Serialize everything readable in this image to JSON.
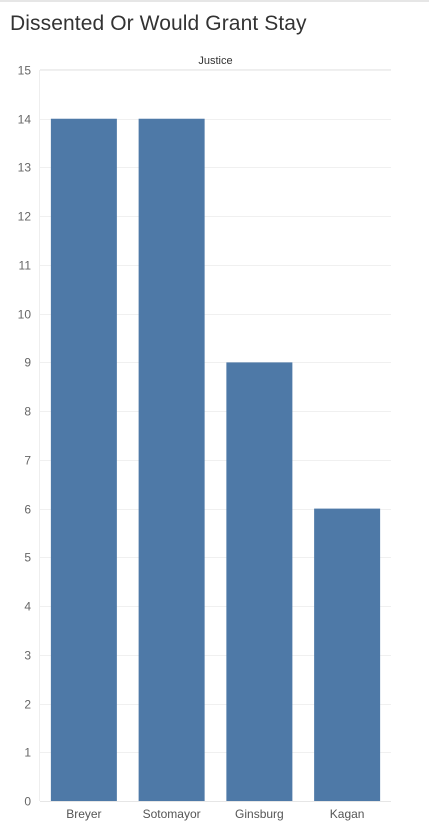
{
  "title": "Dissented Or Would Grant Stay",
  "chart_data": {
    "type": "bar",
    "column_header": "Justice",
    "categories": [
      "Breyer",
      "Sotomayor",
      "Ginsburg",
      "Kagan"
    ],
    "values": [
      14,
      14,
      9,
      6
    ],
    "ylim": [
      0,
      15
    ],
    "yticks": [
      0,
      1,
      2,
      3,
      4,
      5,
      6,
      7,
      8,
      9,
      10,
      11,
      12,
      13,
      14,
      15
    ],
    "grid": true,
    "bar_color": "#4e79a7"
  }
}
